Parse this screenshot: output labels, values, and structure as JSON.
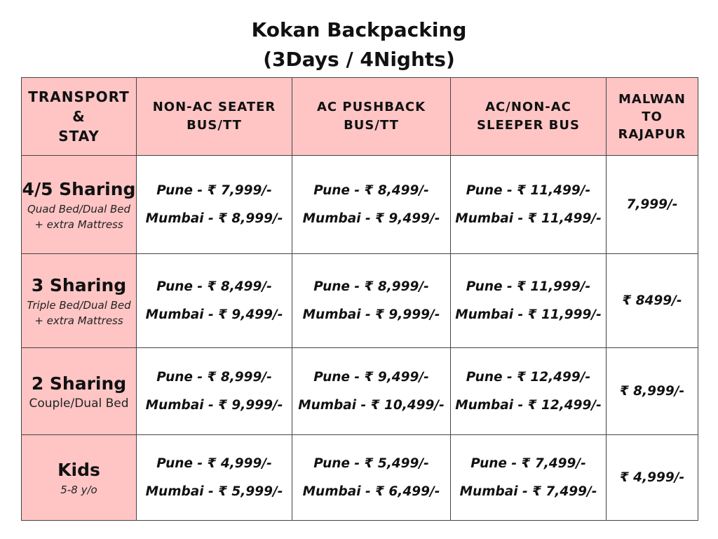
{
  "title": {
    "line1": "Kokan Backpacking",
    "line2": "(3Days / 4Nights)"
  },
  "colors": {
    "header_bg": "#ffc5c5",
    "border": "#444444"
  },
  "header": {
    "stay": [
      "TRANSPORT",
      "&",
      "STAY"
    ],
    "columns": [
      [
        "NON-AC SEATER",
        "BUS/TT"
      ],
      [
        "AC PUSHBACK",
        "BUS/TT"
      ],
      [
        "AC/NON-AC",
        "SLEEPER BUS"
      ],
      [
        "MALWAN",
        "TO",
        "RAJAPUR"
      ]
    ]
  },
  "rows": [
    {
      "title": "4/5 Sharing",
      "sub": [
        "Quad Bed/Dual Bed",
        "+ extra Mattress"
      ],
      "prices": [
        [
          "Pune - ₹ 7,999/-",
          "Mumbai - ₹ 8,999/-"
        ],
        [
          "Pune - ₹ 8,499/-",
          "Mumbai - ₹ 9,499/-"
        ],
        [
          "Pune - ₹ 11,499/-",
          "Mumbai - ₹ 11,499/-"
        ]
      ],
      "malwan": "7,999/-"
    },
    {
      "title": "3 Sharing",
      "sub": [
        "Triple Bed/Dual Bed",
        "+ extra Mattress"
      ],
      "prices": [
        [
          "Pune - ₹ 8,499/-",
          "Mumbai - ₹ 9,499/-"
        ],
        [
          "Pune - ₹ 8,999/-",
          "Mumbai - ₹ 9,999/-"
        ],
        [
          "Pune - ₹ 11,999/-",
          "Mumbai - ₹ 11,999/-"
        ]
      ],
      "malwan": "₹ 8499/-"
    },
    {
      "title": "2 Sharing",
      "sub": [
        "Couple/Dual Bed"
      ],
      "prices": [
        [
          "Pune - ₹ 8,999/-",
          "Mumbai - ₹ 9,999/-"
        ],
        [
          "Pune - ₹ 9,499/-",
          "Mumbai - ₹ 10,499/-"
        ],
        [
          "Pune - ₹ 12,499/-",
          "Mumbai - ₹ 12,499/-"
        ]
      ],
      "malwan": "₹ 8,999/-"
    },
    {
      "title": "Kids",
      "sub": [
        "5-8 y/o"
      ],
      "prices": [
        [
          "Pune - ₹ 4,999/-",
          "Mumbai - ₹ 5,999/-"
        ],
        [
          "Pune - ₹ 5,499/-",
          "Mumbai - ₹ 6,499/-"
        ],
        [
          "Pune - ₹ 7,499/-",
          "Mumbai - ₹ 7,499/-"
        ]
      ],
      "malwan": "₹ 4,999/-"
    }
  ]
}
